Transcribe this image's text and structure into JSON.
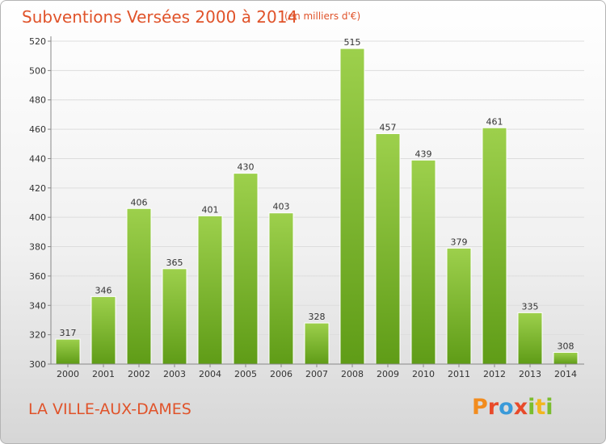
{
  "header": {
    "title": "Subventions Versées 2000 à 2014",
    "subtitle": "(en milliers d'€)"
  },
  "footer": {
    "place": "LA VILLE-AUX-DAMES",
    "logo": [
      "P",
      "r",
      "o",
      "x",
      "i",
      "t",
      "i"
    ]
  },
  "colors": {
    "title": "#e0532a",
    "bar_top": "#9dd04c",
    "bar_bottom": "#5f9c17",
    "grid": "#dddddd"
  },
  "chart_data": {
    "type": "bar",
    "title": "Subventions Versées 2000 à 2014",
    "subtitle": "(en milliers d'€)",
    "categories": [
      "2000",
      "2001",
      "2002",
      "2003",
      "2004",
      "2005",
      "2006",
      "2007",
      "2008",
      "2009",
      "2010",
      "2011",
      "2012",
      "2013",
      "2014"
    ],
    "values": [
      317,
      346,
      406,
      365,
      401,
      430,
      403,
      328,
      515,
      457,
      439,
      379,
      461,
      335,
      308
    ],
    "ylim": [
      300,
      520
    ],
    "yticks": [
      300,
      320,
      340,
      360,
      380,
      400,
      420,
      440,
      460,
      480,
      500,
      520
    ],
    "grid": true,
    "legend": "none"
  }
}
